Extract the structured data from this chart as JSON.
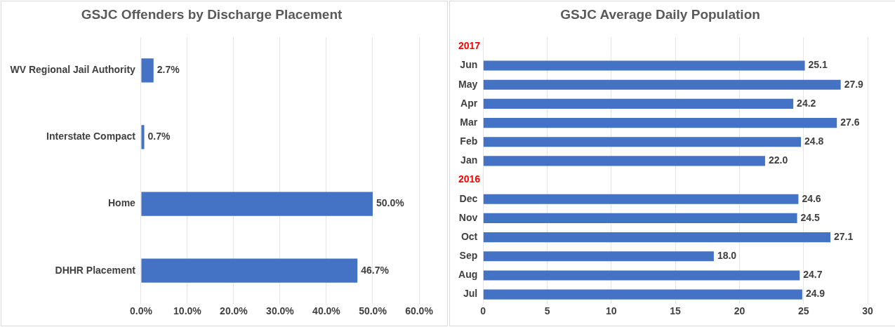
{
  "chart_data": [
    {
      "type": "bar",
      "orientation": "horizontal",
      "title": "GSJC Offenders by Discharge Placement",
      "categories": [
        "WV Regional Jail Authority",
        "Interstate Compact",
        "Home",
        "DHHR Placement"
      ],
      "values": [
        2.7,
        0.7,
        50.0,
        46.7
      ],
      "value_labels": [
        "2.7%",
        "0.7%",
        "50.0%",
        "46.7%"
      ],
      "color": "#4472c4",
      "xlim": [
        0,
        60
      ],
      "xticks": [
        {
          "value": 0,
          "label": "0.0%"
        },
        {
          "value": 10,
          "label": "10.0%"
        },
        {
          "value": 20,
          "label": "20.0%"
        },
        {
          "value": 30,
          "label": "30.0%"
        },
        {
          "value": 40,
          "label": "40.0%"
        },
        {
          "value": 50,
          "label": "50.0%"
        },
        {
          "value": 60,
          "label": "60.0%"
        }
      ],
      "grid": "x",
      "legend": false
    },
    {
      "type": "bar",
      "orientation": "horizontal",
      "title": "GSJC Average Daily Population",
      "categories": [
        null,
        "Jun",
        "May",
        "Apr",
        "Mar",
        "Feb",
        "Jan",
        null,
        "Dec",
        "Nov",
        "Oct",
        "Sep",
        "Aug",
        "Jul"
      ],
      "values": [
        null,
        25.1,
        27.9,
        24.2,
        27.6,
        24.8,
        22.0,
        null,
        24.6,
        24.5,
        27.1,
        18.0,
        24.7,
        24.9
      ],
      "value_labels": [
        null,
        "25.1",
        "27.9",
        "24.2",
        "27.6",
        "24.8",
        "22.0",
        null,
        "24.6",
        "24.5",
        "27.1",
        "18.0",
        "24.7",
        "24.9"
      ],
      "color": "#4472c4",
      "xlim": [
        0,
        30
      ],
      "xticks": [
        0,
        5,
        10,
        15,
        20,
        25,
        30
      ],
      "grid": "x",
      "legend": false,
      "annotations": [
        "2017",
        "2016"
      ]
    }
  ]
}
